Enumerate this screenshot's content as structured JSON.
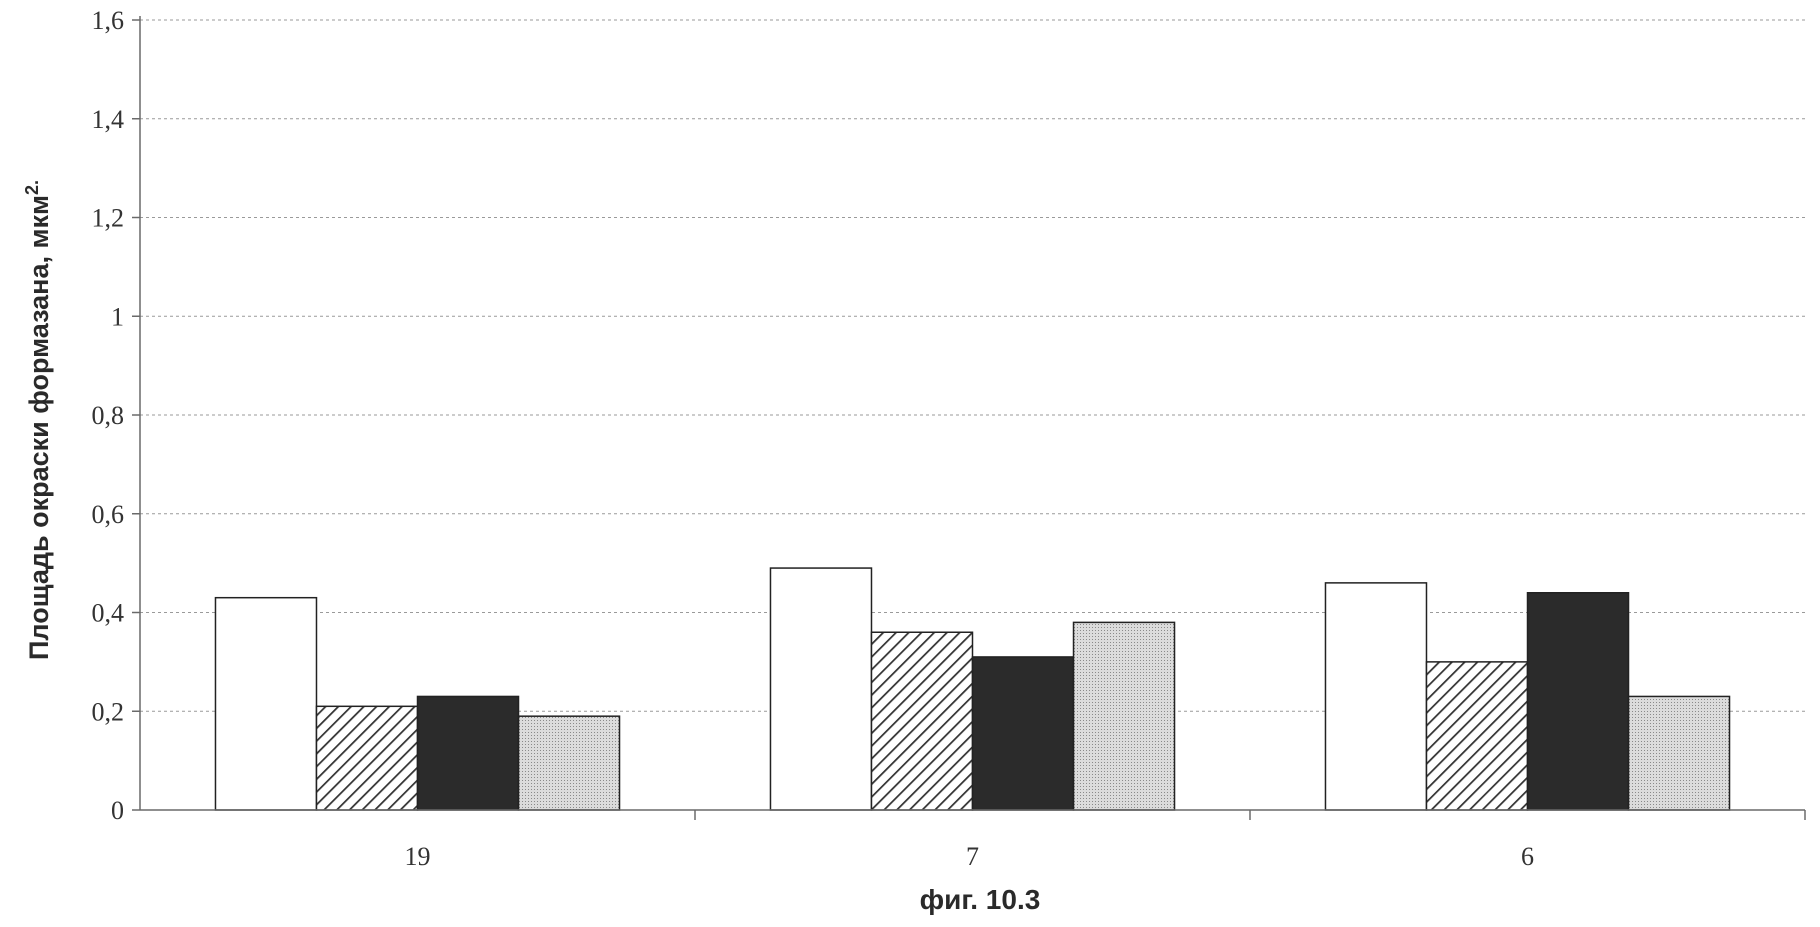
{
  "chart_data": {
    "type": "bar",
    "ylabel": "Площадь окраски формазана, мкм",
    "ylabel_sup": "2.",
    "xlabel": "фиг. 10.3",
    "ylim": [
      0,
      1.6
    ],
    "yticks": [
      "0",
      "0,2",
      "0,4",
      "0,6",
      "0,8",
      "1",
      "1,2",
      "1,4",
      "1,6"
    ],
    "categories": [
      "19",
      "7",
      "6"
    ],
    "grid": true,
    "series": [
      {
        "fill": "white",
        "values": [
          0.43,
          0.49,
          0.46
        ]
      },
      {
        "fill": "diagonal-hatch",
        "values": [
          0.21,
          0.36,
          0.3
        ]
      },
      {
        "fill": "black",
        "values": [
          0.23,
          0.31,
          0.44
        ]
      },
      {
        "fill": "dotted-gray",
        "values": [
          0.19,
          0.38,
          0.23
        ]
      }
    ]
  },
  "colors": {
    "white": "#ffffff",
    "black": "#2b2b2b",
    "hatch": "#333333",
    "dotted": "#d4d4d4"
  }
}
